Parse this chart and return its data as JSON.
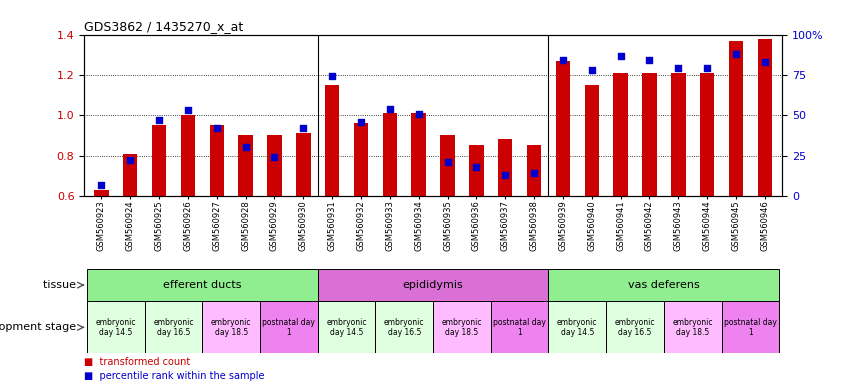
{
  "title": "GDS3862 / 1435270_x_at",
  "samples": [
    "GSM560923",
    "GSM560924",
    "GSM560925",
    "GSM560926",
    "GSM560927",
    "GSM560928",
    "GSM560929",
    "GSM560930",
    "GSM560931",
    "GSM560932",
    "GSM560933",
    "GSM560934",
    "GSM560935",
    "GSM560936",
    "GSM560937",
    "GSM560938",
    "GSM560939",
    "GSM560940",
    "GSM560941",
    "GSM560942",
    "GSM560943",
    "GSM560944",
    "GSM560945",
    "GSM560946"
  ],
  "red_values": [
    0.63,
    0.81,
    0.95,
    1.0,
    0.95,
    0.9,
    0.9,
    0.91,
    1.15,
    0.96,
    1.01,
    1.01,
    0.9,
    0.85,
    0.88,
    0.85,
    1.27,
    1.15,
    1.21,
    1.21,
    1.21,
    1.21,
    1.37,
    1.38
  ],
  "blue_values": [
    7,
    22,
    47,
    53,
    42,
    30,
    24,
    42,
    74,
    46,
    54,
    51,
    21,
    18,
    13,
    14,
    84,
    78,
    87,
    84,
    79,
    79,
    88,
    83
  ],
  "ylim_left": [
    0.6,
    1.4
  ],
  "ylim_right": [
    0,
    100
  ],
  "yticks_left": [
    0.6,
    0.8,
    1.0,
    1.2,
    1.4
  ],
  "yticks_right": [
    0,
    25,
    50,
    75,
    100
  ],
  "ytick_labels_right": [
    "0",
    "25",
    "50",
    "75",
    "100%"
  ],
  "red_color": "#cc0000",
  "blue_color": "#0000cc",
  "tissue_groups": [
    {
      "label": "efferent ducts",
      "start": 0,
      "end": 7,
      "color": "#90ee90"
    },
    {
      "label": "epididymis",
      "start": 8,
      "end": 15,
      "color": "#da70d6"
    },
    {
      "label": "vas deferens",
      "start": 16,
      "end": 23,
      "color": "#90ee90"
    }
  ],
  "dev_groups": [
    {
      "label": "embryonic\nday 14.5",
      "start": 0,
      "end": 1,
      "color": "#e0ffe0"
    },
    {
      "label": "embryonic\nday 16.5",
      "start": 2,
      "end": 3,
      "color": "#e0ffe0"
    },
    {
      "label": "embryonic\nday 18.5",
      "start": 4,
      "end": 5,
      "color": "#ffbbff"
    },
    {
      "label": "postnatal day\n1",
      "start": 6,
      "end": 7,
      "color": "#ee82ee"
    },
    {
      "label": "embryonic\nday 14.5",
      "start": 8,
      "end": 9,
      "color": "#e0ffe0"
    },
    {
      "label": "embryonic\nday 16.5",
      "start": 10,
      "end": 11,
      "color": "#e0ffe0"
    },
    {
      "label": "embryonic\nday 18.5",
      "start": 12,
      "end": 13,
      "color": "#ffbbff"
    },
    {
      "label": "postnatal day\n1",
      "start": 14,
      "end": 15,
      "color": "#ee82ee"
    },
    {
      "label": "embryonic\nday 14.5",
      "start": 16,
      "end": 17,
      "color": "#e0ffe0"
    },
    {
      "label": "embryonic\nday 16.5",
      "start": 18,
      "end": 19,
      "color": "#e0ffe0"
    },
    {
      "label": "embryonic\nday 18.5",
      "start": 20,
      "end": 21,
      "color": "#ffbbff"
    },
    {
      "label": "postnatal day\n1",
      "start": 22,
      "end": 23,
      "color": "#ee82ee"
    }
  ],
  "tissue_sep": [
    7.5,
    15.5
  ],
  "legend_red": "transformed count",
  "legend_blue": "percentile rank within the sample",
  "tissue_label": "tissue",
  "dev_label": "development stage",
  "bar_width": 0.5
}
